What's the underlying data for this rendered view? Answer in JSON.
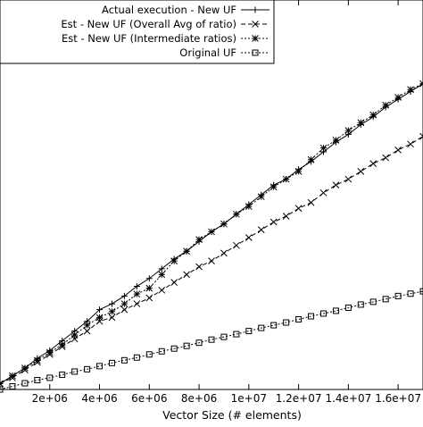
{
  "chart_data": {
    "type": "line",
    "title": "",
    "xlabel": "Vector Size (# elements)",
    "ylabel": "",
    "xlim": [
      0,
      17000000
    ],
    "ylim": [
      0,
      100
    ],
    "x_ticks": [
      2000000,
      4000000,
      6000000,
      8000000,
      10000000,
      12000000,
      14000000,
      16000000
    ],
    "x_tick_labels": [
      "2e+06",
      "4e+06",
      "6e+06",
      "8e+06",
      "1e+07",
      "1.2e+07",
      "1.4e+07",
      "1.6e+07"
    ],
    "grid": false,
    "legend_position": "top-right",
    "series": [
      {
        "name": "Actual execution - New UF",
        "marker": "plus",
        "dash": "solid",
        "x": [
          0,
          500000,
          1000000,
          1500000,
          2000000,
          2500000,
          3000000,
          3500000,
          4000000,
          4500000,
          5000000,
          5500000,
          6000000,
          6500000,
          7000000,
          7500000,
          8000000,
          8500000,
          9000000,
          9500000,
          10000000,
          10500000,
          11000000,
          11500000,
          12000000,
          12500000,
          13000000,
          13500000,
          14000000,
          14500000,
          15000000,
          15500000,
          16000000,
          16500000,
          17000000
        ],
        "y": [
          1.5,
          3.5,
          5.5,
          8.0,
          10.0,
          12.5,
          15.0,
          17.5,
          20.5,
          22.0,
          24.0,
          26.5,
          28.5,
          31.0,
          33.5,
          35.5,
          38.0,
          40.5,
          42.5,
          45.0,
          47.5,
          50.0,
          52.5,
          54.0,
          56.5,
          58.5,
          61.0,
          63.5,
          65.5,
          68.0,
          70.0,
          72.5,
          74.5,
          76.5,
          78.5
        ]
      },
      {
        "name": "Est - New UF (Overall Avg of ratio)",
        "marker": "cross",
        "dash": "dashed",
        "x": [
          0,
          500000,
          1000000,
          1500000,
          2000000,
          2500000,
          3000000,
          3500000,
          4000000,
          4500000,
          5000000,
          5500000,
          6000000,
          6500000,
          7000000,
          7500000,
          8000000,
          8500000,
          9000000,
          9500000,
          10000000,
          10500000,
          11000000,
          11500000,
          12000000,
          12500000,
          13000000,
          13500000,
          14000000,
          14500000,
          15000000,
          15500000,
          16000000,
          16500000,
          17000000
        ],
        "y": [
          1.5,
          3.0,
          5.0,
          7.0,
          9.0,
          11.0,
          13.0,
          15.0,
          17.5,
          18.5,
          20.5,
          22.0,
          23.5,
          25.5,
          27.5,
          29.5,
          31.5,
          33.0,
          35.0,
          37.0,
          39.0,
          41.0,
          43.0,
          44.5,
          46.5,
          48.0,
          50.5,
          52.5,
          54.0,
          56.0,
          58.0,
          59.5,
          61.5,
          63.0,
          65.0
        ]
      },
      {
        "name": "Est - New UF (Intermediate ratios)",
        "marker": "star",
        "dash": "dotted",
        "x": [
          0,
          500000,
          1000000,
          1500000,
          2000000,
          2500000,
          3000000,
          3500000,
          4000000,
          4500000,
          5000000,
          5500000,
          6000000,
          6500000,
          7000000,
          7500000,
          8000000,
          8500000,
          9000000,
          9500000,
          10000000,
          10500000,
          11000000,
          11500000,
          12000000,
          12500000,
          13000000,
          13500000,
          14000000,
          14500000,
          15000000,
          15500000,
          16000000,
          16500000,
          17000000
        ],
        "y": [
          1.5,
          3.5,
          5.5,
          7.5,
          9.5,
          11.5,
          14.0,
          16.5,
          18.5,
          20.0,
          22.0,
          24.5,
          26.0,
          29.5,
          33.0,
          35.5,
          38.5,
          40.5,
          42.5,
          45.0,
          47.0,
          49.5,
          52.0,
          54.0,
          56.0,
          59.0,
          62.0,
          64.0,
          66.5,
          68.5,
          70.5,
          73.0,
          75.0,
          77.0,
          78.5
        ]
      },
      {
        "name": "Original UF",
        "marker": "square",
        "dash": "dotted",
        "x": [
          0,
          500000,
          1000000,
          1500000,
          2000000,
          2500000,
          3000000,
          3500000,
          4000000,
          4500000,
          5000000,
          5500000,
          6000000,
          6500000,
          7000000,
          7500000,
          8000000,
          8500000,
          9000000,
          9500000,
          10000000,
          10500000,
          11000000,
          11500000,
          12000000,
          12500000,
          13000000,
          13500000,
          14000000,
          14500000,
          15000000,
          15500000,
          16000000,
          16500000,
          17000000
        ],
        "y": [
          0.0,
          0.8,
          1.6,
          2.4,
          3.0,
          3.8,
          4.6,
          5.2,
          6.0,
          6.8,
          7.5,
          8.2,
          9.0,
          9.8,
          10.5,
          11.2,
          12.0,
          12.8,
          13.5,
          14.2,
          15.0,
          15.8,
          16.5,
          17.2,
          18.0,
          18.8,
          19.5,
          20.2,
          21.0,
          21.8,
          22.5,
          23.2,
          24.0,
          24.6,
          25.2
        ]
      }
    ]
  }
}
